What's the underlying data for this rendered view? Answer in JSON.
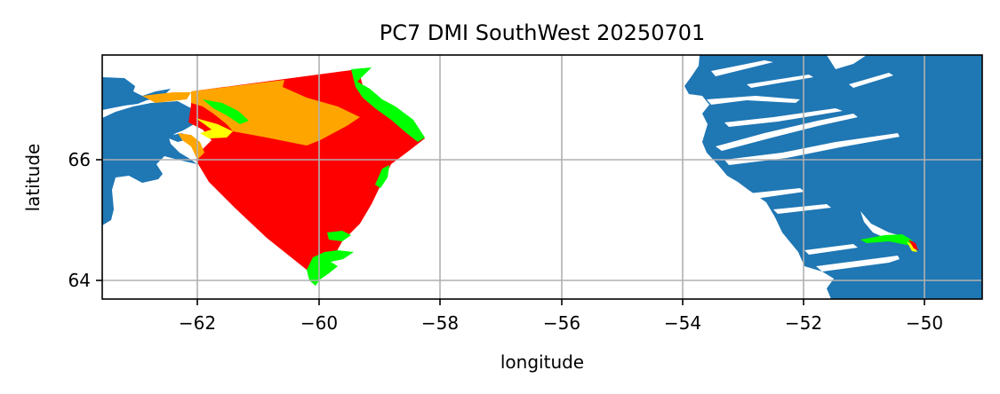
{
  "chart_data": {
    "type": "map",
    "title": "PC7 DMI SouthWest 20250701",
    "xlabel": "longitude",
    "ylabel": "latitude",
    "xlim": [
      -63.5,
      -49.0
    ],
    "ylim": [
      63.7,
      67.75
    ],
    "xticks": [
      -62,
      -60,
      -58,
      -56,
      -54,
      -52,
      -50
    ],
    "xtick_labels": [
      "−62",
      "−60",
      "−58",
      "−56",
      "−54",
      "−52",
      "−50"
    ],
    "yticks": [
      64,
      66
    ],
    "ytick_labels": [
      "64",
      "66"
    ],
    "grid": true,
    "colors": {
      "land": "#1f77b4",
      "red": "#ff0000",
      "orange": "#ffa500",
      "green": "#00ff00",
      "yellow": "#ffff00",
      "grid": "#b0b0b0"
    }
  }
}
